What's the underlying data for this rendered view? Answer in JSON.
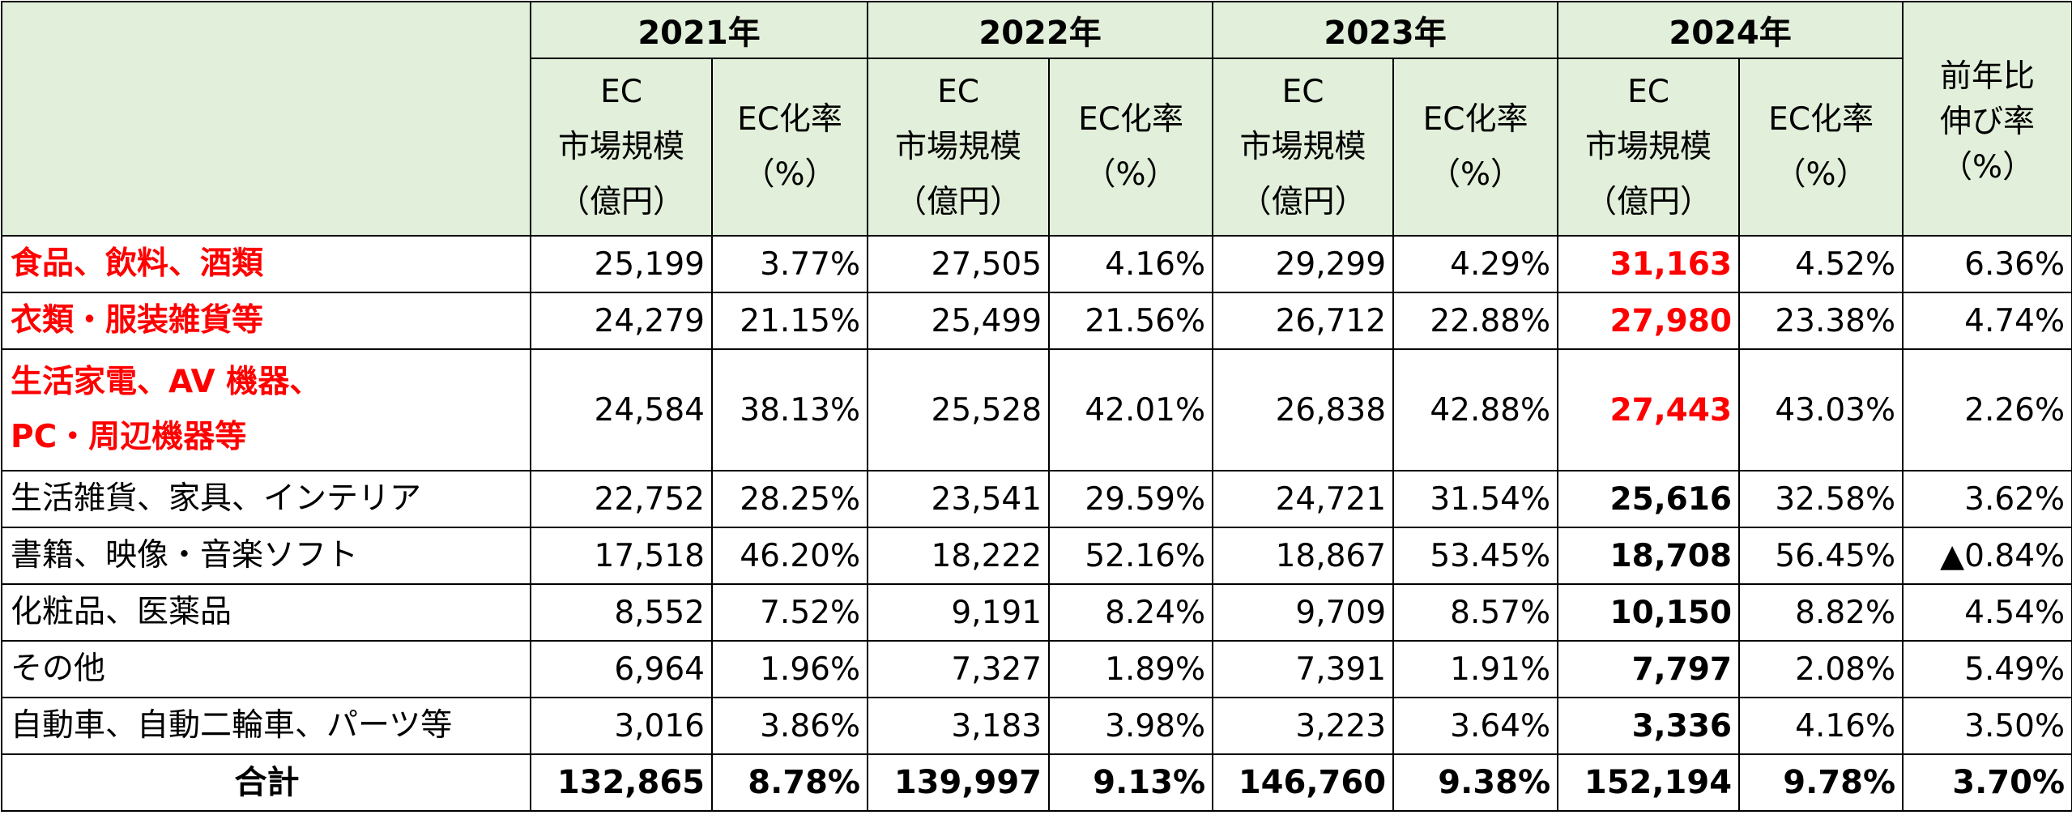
{
  "header": {
    "years": [
      "2021年",
      "2022年",
      "2023年",
      "2024年"
    ],
    "market_label_lines": [
      "EC",
      "市場規模",
      "（億円）"
    ],
    "rate_label_lines": [
      "EC化率",
      "（%）"
    ],
    "growth_label_lines": [
      "前年比",
      "伸び率",
      "（%）"
    ]
  },
  "rows": [
    {
      "category_lines": [
        "食品、飲料、酒類"
      ],
      "highlight": true,
      "values": [
        "25,199",
        "3.77%",
        "27,505",
        "4.16%",
        "29,299",
        "4.29%",
        "31,163",
        "4.52%",
        "6.36%"
      ]
    },
    {
      "category_lines": [
        "衣類・服装雑貨等"
      ],
      "highlight": true,
      "values": [
        "24,279",
        "21.15%",
        "25,499",
        "21.56%",
        "26,712",
        "22.88%",
        "27,980",
        "23.38%",
        "4.74%"
      ]
    },
    {
      "category_lines": [
        "生活家電、AV 機器、",
        "PC・周辺機器等"
      ],
      "highlight": true,
      "values": [
        "24,584",
        "38.13%",
        "25,528",
        "42.01%",
        "26,838",
        "42.88%",
        "27,443",
        "43.03%",
        "2.26%"
      ]
    },
    {
      "category_lines": [
        "生活雑貨、家具、インテリア"
      ],
      "highlight": false,
      "values": [
        "22,752",
        "28.25%",
        "23,541",
        "29.59%",
        "24,721",
        "31.54%",
        "25,616",
        "32.58%",
        "3.62%"
      ]
    },
    {
      "category_lines": [
        "書籍、映像・音楽ソフト"
      ],
      "highlight": false,
      "values": [
        "17,518",
        "46.20%",
        "18,222",
        "52.16%",
        "18,867",
        "53.45%",
        "18,708",
        "56.45%",
        "▲0.84%"
      ]
    },
    {
      "category_lines": [
        "化粧品、医薬品"
      ],
      "highlight": false,
      "values": [
        "8,552",
        "7.52%",
        "9,191",
        "8.24%",
        "9,709",
        "8.57%",
        "10,150",
        "8.82%",
        "4.54%"
      ]
    },
    {
      "category_lines": [
        "その他"
      ],
      "highlight": false,
      "values": [
        "6,964",
        "1.96%",
        "7,327",
        "1.89%",
        "7,391",
        "1.91%",
        "7,797",
        "2.08%",
        "5.49%"
      ]
    },
    {
      "category_lines": [
        "自動車、自動二輪車、パーツ等"
      ],
      "highlight": false,
      "values": [
        "3,016",
        "3.86%",
        "3,183",
        "3.98%",
        "3,223",
        "3.64%",
        "3,336",
        "4.16%",
        "3.50%"
      ]
    }
  ],
  "total": {
    "label": "合計",
    "values": [
      "132,865",
      "8.78%",
      "139,997",
      "9.13%",
      "146,760",
      "9.38%",
      "152,194",
      "9.78%",
      "3.70%"
    ]
  },
  "colors": {
    "header_bg": "#e2efda",
    "highlight_red": "#ff0000",
    "border": "#000000"
  }
}
